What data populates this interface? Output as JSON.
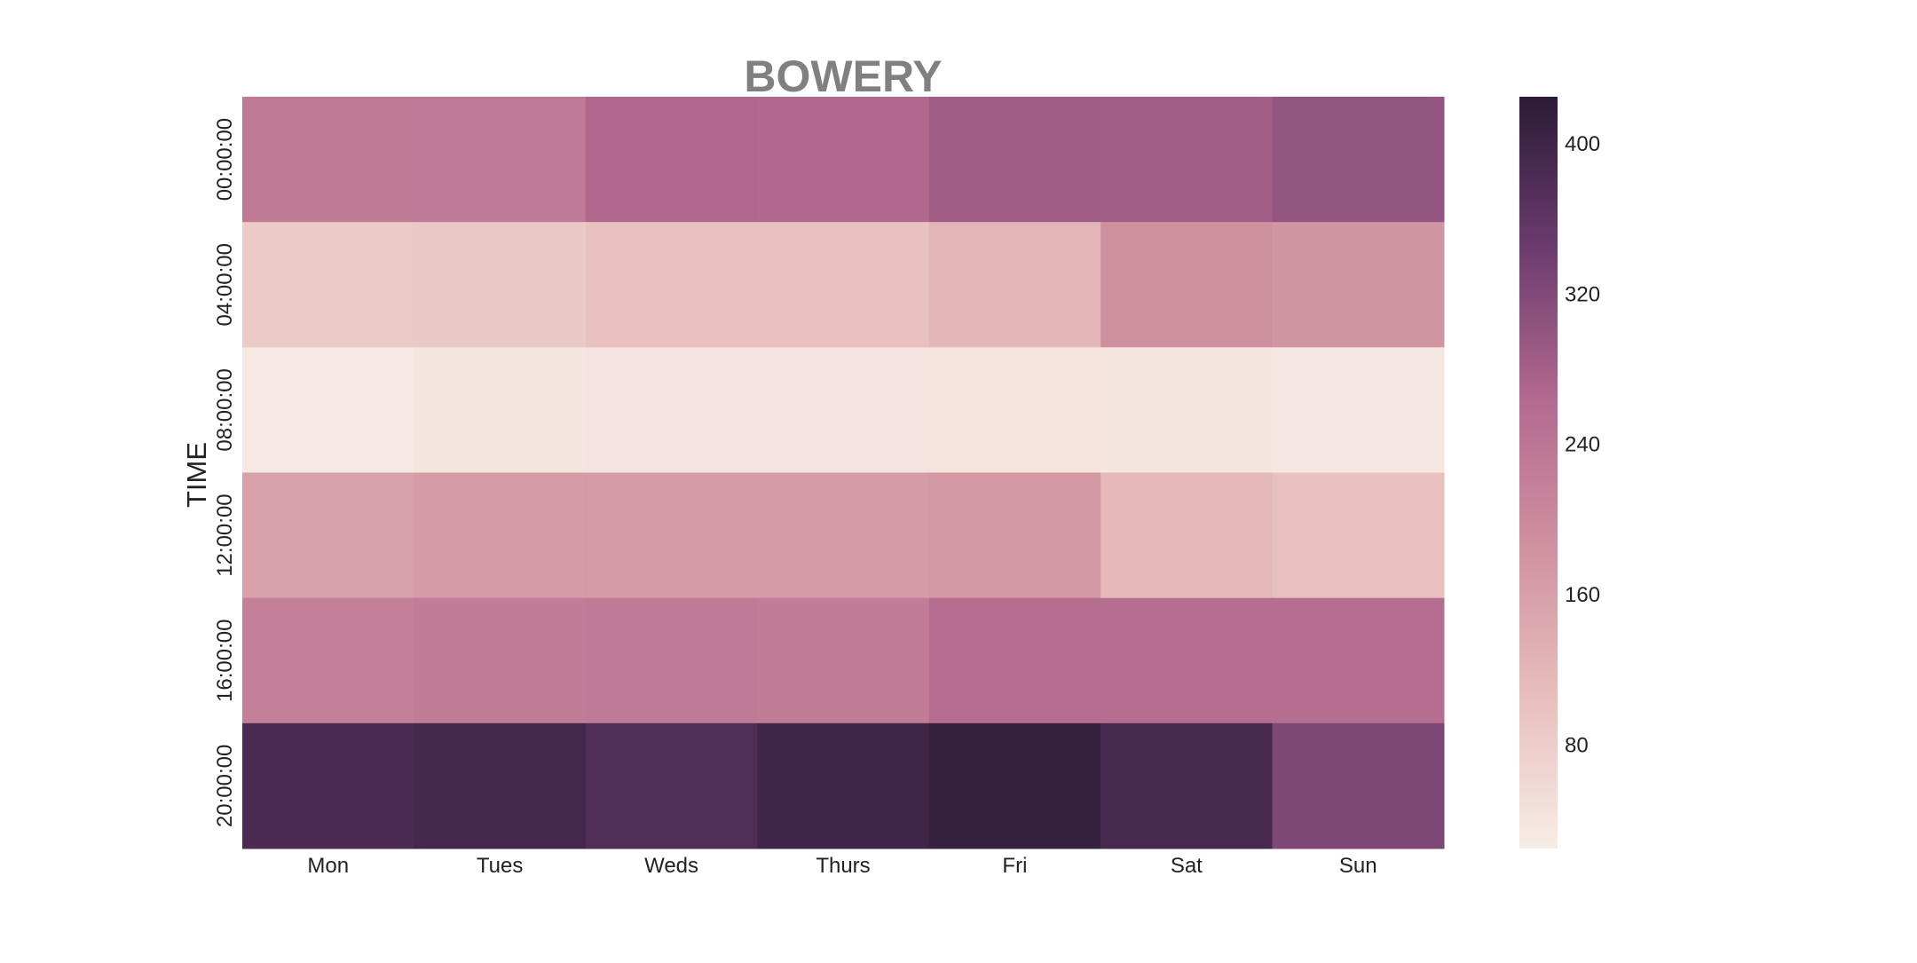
{
  "chart_data": {
    "type": "heatmap",
    "title": "BOWERY",
    "xlabel": "",
    "ylabel": "TIME",
    "x_categories": [
      "Mon",
      "Tues",
      "Weds",
      "Thurs",
      "Fri",
      "Sat",
      "Sun"
    ],
    "y_categories": [
      "00:00:00",
      "04:00:00",
      "08:00:00",
      "12:00:00",
      "16:00:00",
      "20:00:00"
    ],
    "values": [
      [
        230,
        232,
        268,
        266,
        286,
        284,
        300
      ],
      [
        86,
        88,
        102,
        102,
        120,
        190,
        178
      ],
      [
        33,
        38,
        41,
        41,
        43,
        38,
        35
      ],
      [
        158,
        168,
        168,
        168,
        172,
        116,
        104
      ],
      [
        220,
        225,
        232,
        225,
        258,
        258,
        258
      ],
      [
        385,
        395,
        380,
        400,
        410,
        390,
        325
      ]
    ],
    "colorbar": {
      "min": 25,
      "max": 425,
      "ticks": [
        80,
        160,
        240,
        320,
        400
      ]
    },
    "colors": {
      "low": "#f7ece6",
      "mid_low": "#e8bfbd",
      "mid": "#d091a0",
      "mid_high": "#b2698f",
      "high": "#6b3b6e",
      "top": "#2b1b37",
      "title": "#808080",
      "text": "#222222"
    },
    "grid": false,
    "legend": "colorbar-right"
  }
}
